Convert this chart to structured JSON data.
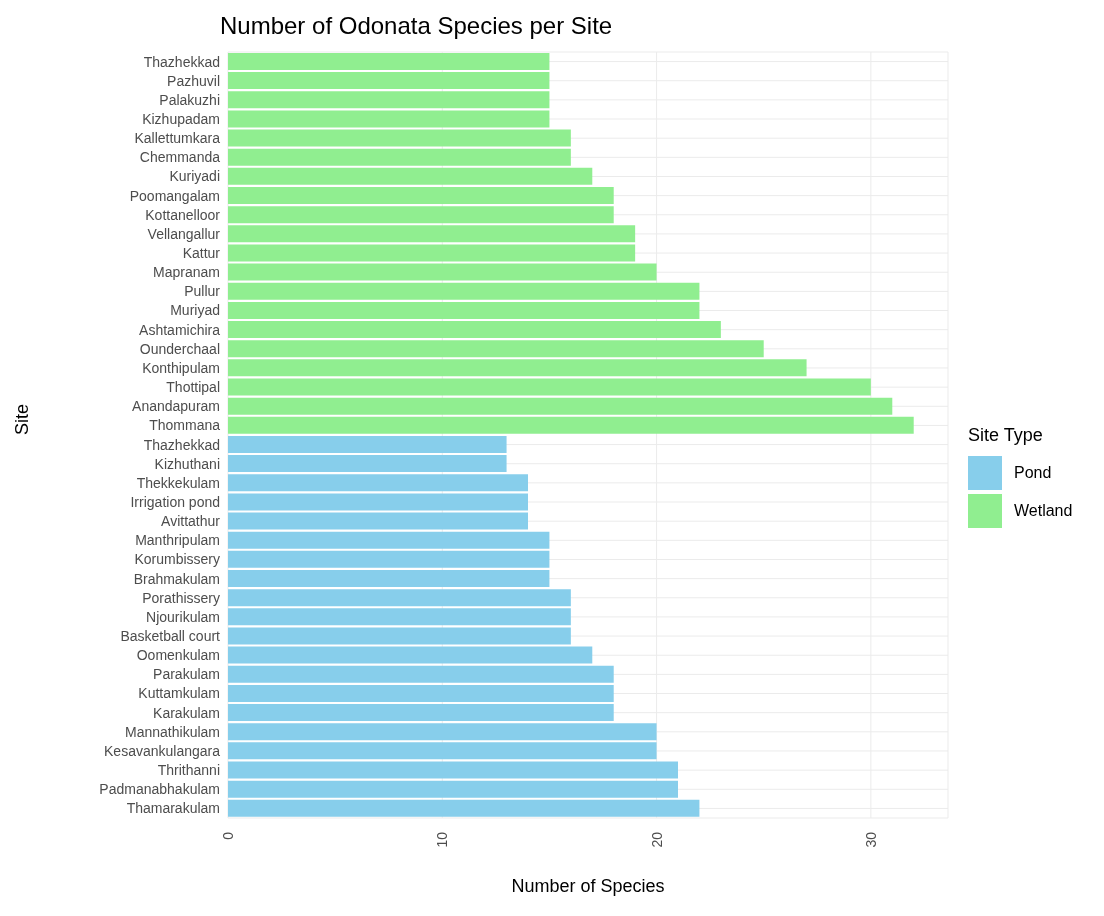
{
  "chart_data": {
    "type": "bar",
    "orientation": "horizontal",
    "title": "Number of Odonata Species per Site",
    "xlabel": "Number of Species",
    "ylabel": "Site",
    "legend_title": "Site Type",
    "legend": "right",
    "grid": true,
    "categories": [
      "Thazhekkad",
      "Pazhuvil",
      "Palakuzhi",
      "Kizhupadam",
      "Kallettumkara",
      "Chemmanda",
      "Kuriyadi",
      "Poomangalam",
      "Kottanelloor",
      "Vellangallur",
      "Kattur",
      "Mapranam",
      "Pullur",
      "Muriyad",
      "Ashtamichira",
      "Ounderchaal",
      "Konthipulam",
      "Thottipal",
      "Anandapuram",
      "Thommana",
      "Thazhekkad",
      "Kizhuthani",
      "Thekkekulam",
      "Irrigation pond",
      "Avittathur",
      "Manthripulam",
      "Korumbissery",
      "Brahmakulam",
      "Porathissery",
      "Njourikulam",
      "Basketball court",
      "Oomenkulam",
      "Parakulam",
      "Kuttamkulam",
      "Karakulam",
      "Mannathikulam",
      "Kesavankulangara",
      "Thrithanni",
      "Padmanabhakulam",
      "Thamarakulam"
    ],
    "series": [
      {
        "name": "Pond",
        "color": "#87ceeb",
        "values": [
          null,
          null,
          null,
          null,
          null,
          null,
          null,
          null,
          null,
          null,
          null,
          null,
          null,
          null,
          null,
          null,
          null,
          null,
          null,
          null,
          13,
          13,
          14,
          14,
          14,
          15,
          15,
          15,
          16,
          16,
          16,
          17,
          18,
          18,
          18,
          20,
          20,
          21,
          21,
          22
        ]
      },
      {
        "name": "Wetland",
        "color": "#90ee90",
        "values": [
          15,
          15,
          15,
          15,
          16,
          16,
          17,
          18,
          18,
          19,
          19,
          20,
          22,
          22,
          23,
          25,
          27,
          30,
          31,
          32,
          null,
          null,
          null,
          null,
          null,
          null,
          null,
          null,
          null,
          null,
          null,
          null,
          null,
          null,
          null,
          null,
          null,
          null,
          null,
          null
        ]
      }
    ],
    "xlim": [
      0,
      33.6
    ],
    "xticks": [
      0,
      10,
      20,
      30
    ]
  }
}
